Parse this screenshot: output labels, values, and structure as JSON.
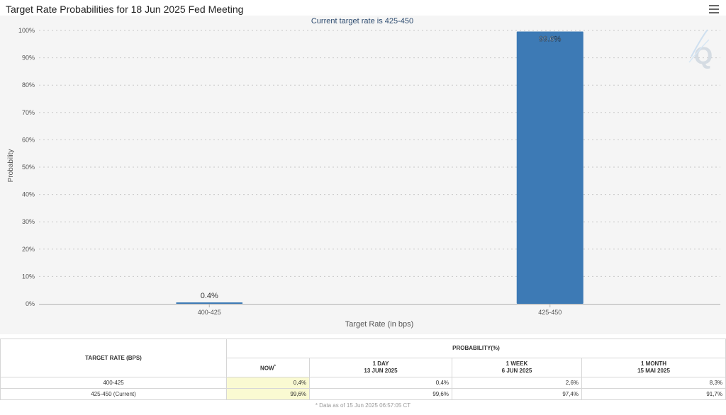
{
  "page_title": "Target Rate Probabilities for 18 Jun 2025 Fed Meeting",
  "menu_icon": "hamburger-menu-icon",
  "watermark_icon": "q-watermark-icon",
  "chart_data": {
    "type": "bar",
    "subtitle": "Current target rate is 425-450",
    "categories": [
      "400-425",
      "425-450"
    ],
    "values": [
      0.4,
      99.6
    ],
    "data_labels": [
      "0.4%",
      "99.6%"
    ],
    "xlabel": "Target Rate (in bps)",
    "ylabel": "Probability",
    "ylim": [
      0,
      100
    ],
    "yticks": [
      "0%",
      "10%",
      "20%",
      "30%",
      "40%",
      "50%",
      "60%",
      "70%",
      "80%",
      "90%",
      "100%"
    ],
    "grid": true,
    "bar_color": "#3d7ab5"
  },
  "table": {
    "header_target": "TARGET RATE (BPS)",
    "header_prob": "PROBABILITY(%)",
    "col_now": "NOW",
    "col_now_mark": "*",
    "col_1day": "1 DAY",
    "col_1day_date": "13 JUN 2025",
    "col_1week": "1 WEEK",
    "col_1week_date": "6 JUN 2025",
    "col_1month": "1 MONTH",
    "col_1month_date": "15 MAI 2025",
    "rows": [
      {
        "rate": "400-425",
        "now": "0,4%",
        "day": "0,4%",
        "week": "2,6%",
        "month": "8,3%"
      },
      {
        "rate": "425-450 (Current)",
        "now": "99,6%",
        "day": "99,6%",
        "week": "97,4%",
        "month": "91,7%"
      }
    ],
    "footnote": "* Data as of 15 Jun 2025 06:57:05 CT"
  }
}
